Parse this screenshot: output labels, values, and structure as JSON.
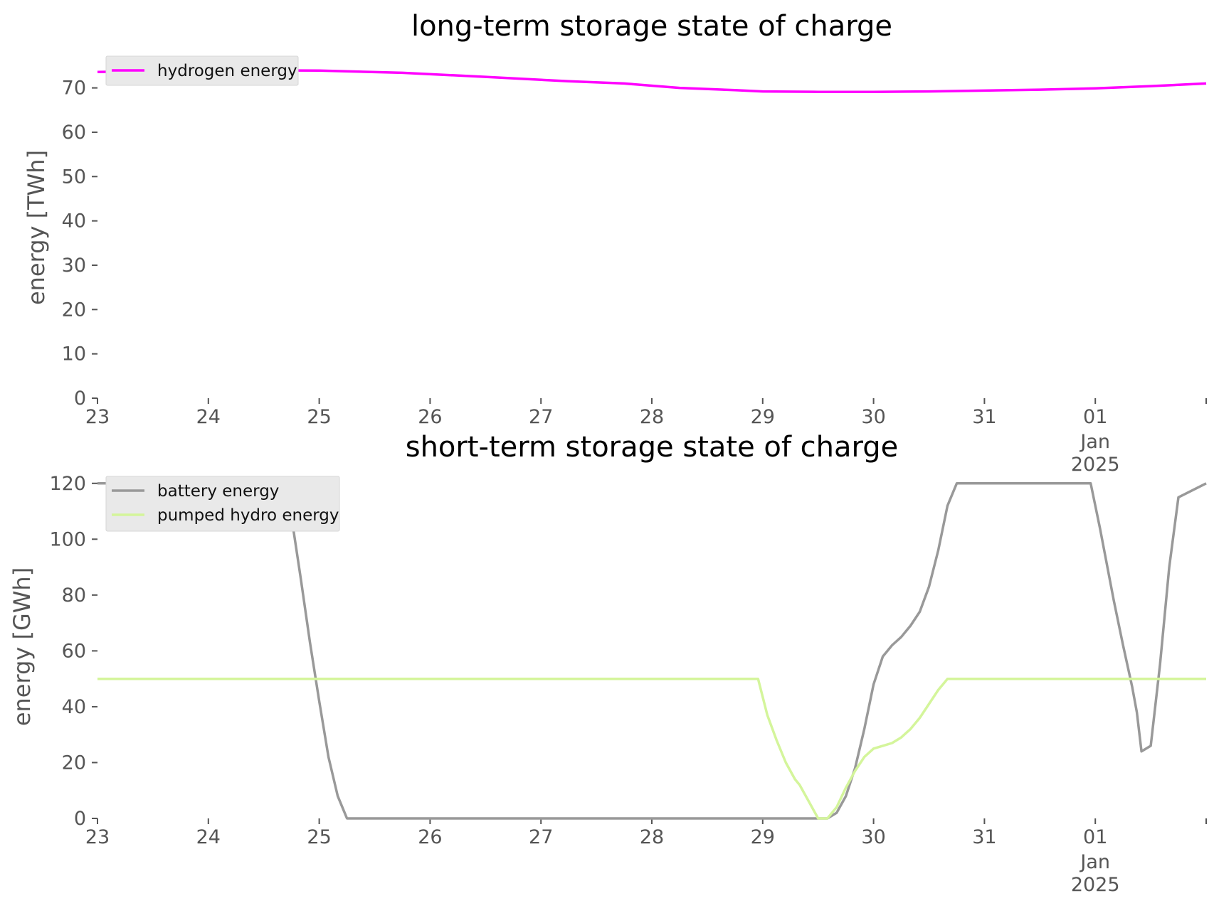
{
  "chart_data": [
    {
      "type": "line",
      "title": "long-term storage state of charge",
      "ylabel": "energy [TWh]",
      "xlabel": "",
      "x_start": "2024-12-23",
      "x_end": "2025-01-02",
      "xticks": [
        {
          "label": "23",
          "sub": []
        },
        {
          "label": "24",
          "sub": []
        },
        {
          "label": "25",
          "sub": []
        },
        {
          "label": "26",
          "sub": []
        },
        {
          "label": "27",
          "sub": []
        },
        {
          "label": "28",
          "sub": []
        },
        {
          "label": "29",
          "sub": []
        },
        {
          "label": "30",
          "sub": []
        },
        {
          "label": "31",
          "sub": []
        },
        {
          "label": "01",
          "sub": [
            "Jan",
            "2025"
          ]
        },
        {
          "label": "",
          "sub": []
        }
      ],
      "ylim": [
        0,
        77
      ],
      "yticks": [
        0,
        10,
        20,
        30,
        40,
        50,
        60,
        70
      ],
      "grid": false,
      "legend": "top-left",
      "series": [
        {
          "name": "hydrogen energy",
          "color": "#ff00ff",
          "x": [
            "2024-12-23 00:00",
            "2024-12-24 00:00",
            "2024-12-25 00:00",
            "2024-12-25 18:00",
            "2024-12-26 12:00",
            "2024-12-27 06:00",
            "2024-12-27 18:00",
            "2024-12-28 06:00",
            "2024-12-28 18:00",
            "2024-12-29 00:00",
            "2024-12-29 12:00",
            "2024-12-30 00:00",
            "2024-12-30 12:00",
            "2024-12-31 00:00",
            "2024-12-31 12:00",
            "2025-01-01 00:00",
            "2025-01-01 12:00",
            "2025-01-02 00:00"
          ],
          "y": [
            73.6,
            74.0,
            73.9,
            73.4,
            72.5,
            71.5,
            71.0,
            70.0,
            69.5,
            69.2,
            69.1,
            69.1,
            69.2,
            69.4,
            69.6,
            69.9,
            70.4,
            71.0
          ]
        }
      ]
    },
    {
      "type": "line",
      "title": "short-term storage state of charge",
      "ylabel": "energy [GWh]",
      "xlabel": "",
      "x_start": "2024-12-23",
      "x_end": "2025-01-02",
      "xticks": [
        {
          "label": "23",
          "sub": []
        },
        {
          "label": "24",
          "sub": []
        },
        {
          "label": "25",
          "sub": []
        },
        {
          "label": "26",
          "sub": []
        },
        {
          "label": "27",
          "sub": []
        },
        {
          "label": "28",
          "sub": []
        },
        {
          "label": "29",
          "sub": []
        },
        {
          "label": "30",
          "sub": []
        },
        {
          "label": "31",
          "sub": []
        },
        {
          "label": "01",
          "sub": [
            "Jan",
            "2025"
          ]
        },
        {
          "label": "",
          "sub": []
        }
      ],
      "ylim": [
        0,
        123
      ],
      "yticks": [
        0,
        20,
        40,
        60,
        80,
        100,
        120
      ],
      "grid": false,
      "legend": "top-left",
      "series": [
        {
          "name": "battery energy",
          "color": "#999999",
          "x": [
            "2024-12-23 00:00",
            "2024-12-24 16:00",
            "2024-12-24 18:00",
            "2024-12-24 20:00",
            "2024-12-24 22:00",
            "2024-12-25 00:00",
            "2024-12-25 02:00",
            "2024-12-25 04:00",
            "2024-12-25 06:00",
            "2024-12-25 08:00",
            "2024-12-25 10:00",
            "2024-12-29 08:00",
            "2024-12-29 10:00",
            "2024-12-29 12:00",
            "2024-12-29 14:00",
            "2024-12-29 16:00",
            "2024-12-29 18:00",
            "2024-12-29 20:00",
            "2024-12-29 22:00",
            "2024-12-30 00:00",
            "2024-12-30 02:00",
            "2024-12-30 04:00",
            "2024-12-30 06:00",
            "2024-12-30 08:00",
            "2024-12-30 10:00",
            "2024-12-30 12:00",
            "2024-12-30 14:00",
            "2024-12-30 16:00",
            "2024-12-30 18:00",
            "2024-12-30 20:00",
            "2024-12-30 22:00",
            "2024-12-31 23:00",
            "2025-01-01 01:00",
            "2025-01-01 04:00",
            "2025-01-01 06:00",
            "2025-01-01 08:00",
            "2025-01-01 09:00",
            "2025-01-01 10:00",
            "2025-01-01 12:00",
            "2025-01-01 14:00",
            "2025-01-01 16:00",
            "2025-01-01 18:00",
            "2025-01-02 00:00"
          ],
          "y": [
            120,
            120,
            108,
            86,
            63,
            42,
            22,
            8,
            0,
            0,
            0,
            0,
            0,
            0,
            0,
            2,
            8,
            18,
            32,
            48,
            58,
            62,
            65,
            69,
            74,
            83,
            96,
            112,
            120,
            120,
            120,
            120,
            104,
            78,
            62,
            47,
            38,
            24,
            26,
            55,
            90,
            115,
            120
          ]
        },
        {
          "name": "pumped hydro energy",
          "color": "#d4f59b",
          "x": [
            "2024-12-23 00:00",
            "2024-12-28 23:00",
            "2024-12-29 01:00",
            "2024-12-29 03:00",
            "2024-12-29 05:00",
            "2024-12-29 07:00",
            "2024-12-29 08:00",
            "2024-12-29 10:00",
            "2024-12-29 12:00",
            "2024-12-29 14:00",
            "2024-12-29 16:00",
            "2024-12-29 18:00",
            "2024-12-29 20:00",
            "2024-12-29 22:00",
            "2024-12-30 00:00",
            "2024-12-30 02:00",
            "2024-12-30 04:00",
            "2024-12-30 06:00",
            "2024-12-30 08:00",
            "2024-12-30 10:00",
            "2024-12-30 12:00",
            "2024-12-30 14:00",
            "2024-12-30 16:00",
            "2025-01-02 00:00"
          ],
          "y": [
            50,
            50,
            37,
            28,
            20,
            14,
            12,
            6,
            0,
            0,
            4,
            11,
            17,
            22,
            25,
            26,
            27,
            29,
            32,
            36,
            41,
            46,
            50,
            50
          ]
        }
      ]
    }
  ]
}
